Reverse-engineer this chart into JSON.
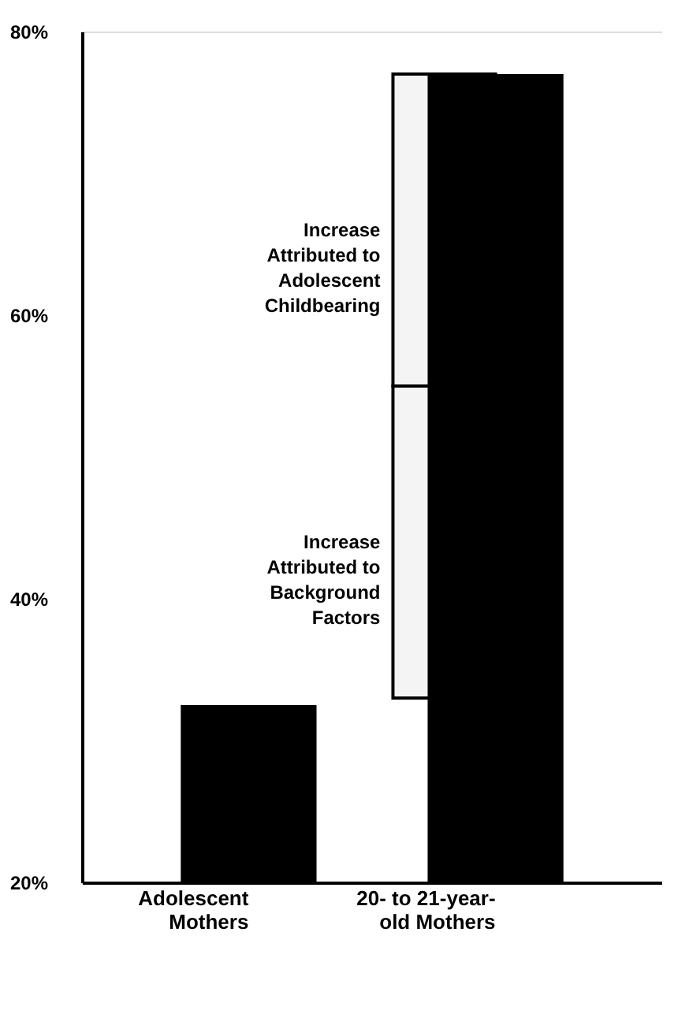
{
  "chart_data": {
    "type": "bar",
    "categories": [
      "Adolescent\nMothers",
      "20- to 21-year-\nold Mothers"
    ],
    "values": [
      32.5,
      77
    ],
    "color": "#000000",
    "ylim": [
      20,
      80
    ],
    "yticks": [
      {
        "value": 20,
        "label": "20%"
      },
      {
        "value": 40,
        "label": "40%"
      },
      {
        "value": 60,
        "label": "60%"
      },
      {
        "value": 80,
        "label": "80%"
      }
    ],
    "grid": false,
    "bands": [
      {
        "axis": "y",
        "from": 33,
        "to": 55,
        "label": "Increase\nAttributed to\nBackground\nFactors"
      },
      {
        "axis": "y",
        "from": 55,
        "to": 77,
        "label": "Increase\nAttributed to\nAdolescent\nChildbearing"
      }
    ]
  }
}
